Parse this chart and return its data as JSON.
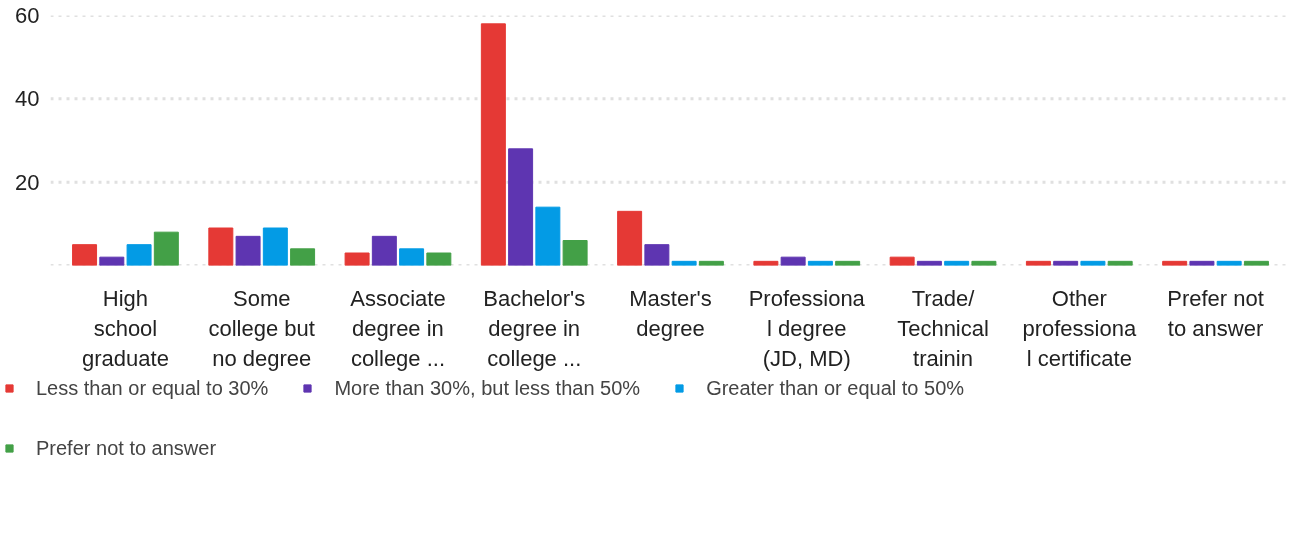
{
  "chart_data": {
    "type": "bar",
    "categories": [
      "High\nschool\ngraduate",
      "Some\ncollege but\nno degree",
      "Associate\ndegree in\ncollege ...",
      "Bachelor's\ndegree in\ncollege ...",
      "Master's\ndegree",
      "Professiona\nl degree\n(JD, MD)",
      "Trade/\nTechnical\ntrainin",
      "Other\nprofessiona\nl certificate",
      "Prefer not\nto answer"
    ],
    "series": [
      {
        "name": "Less than or equal to 30%",
        "color": "#e53935",
        "values": [
          5,
          9,
          3,
          58,
          13,
          1,
          2,
          1,
          1
        ]
      },
      {
        "name": "More than 30%, but less than 50%",
        "color": "#5e35b1",
        "values": [
          2,
          7,
          7,
          28,
          5,
          2,
          1,
          1,
          1
        ]
      },
      {
        "name": "Greater than or equal to 50%",
        "color": "#039be5",
        "values": [
          5,
          9,
          4,
          14,
          1,
          1,
          1,
          1,
          1
        ]
      },
      {
        "name": "Prefer not to answer",
        "color": "#43a047",
        "values": [
          8,
          4,
          3,
          6,
          1,
          1,
          1,
          1,
          1
        ]
      }
    ],
    "ylim": [
      0,
      60
    ],
    "yticks": [
      {
        "value": 0,
        "label": null
      },
      20,
      40,
      60
    ],
    "grid": "y",
    "legend": "bottom"
  }
}
